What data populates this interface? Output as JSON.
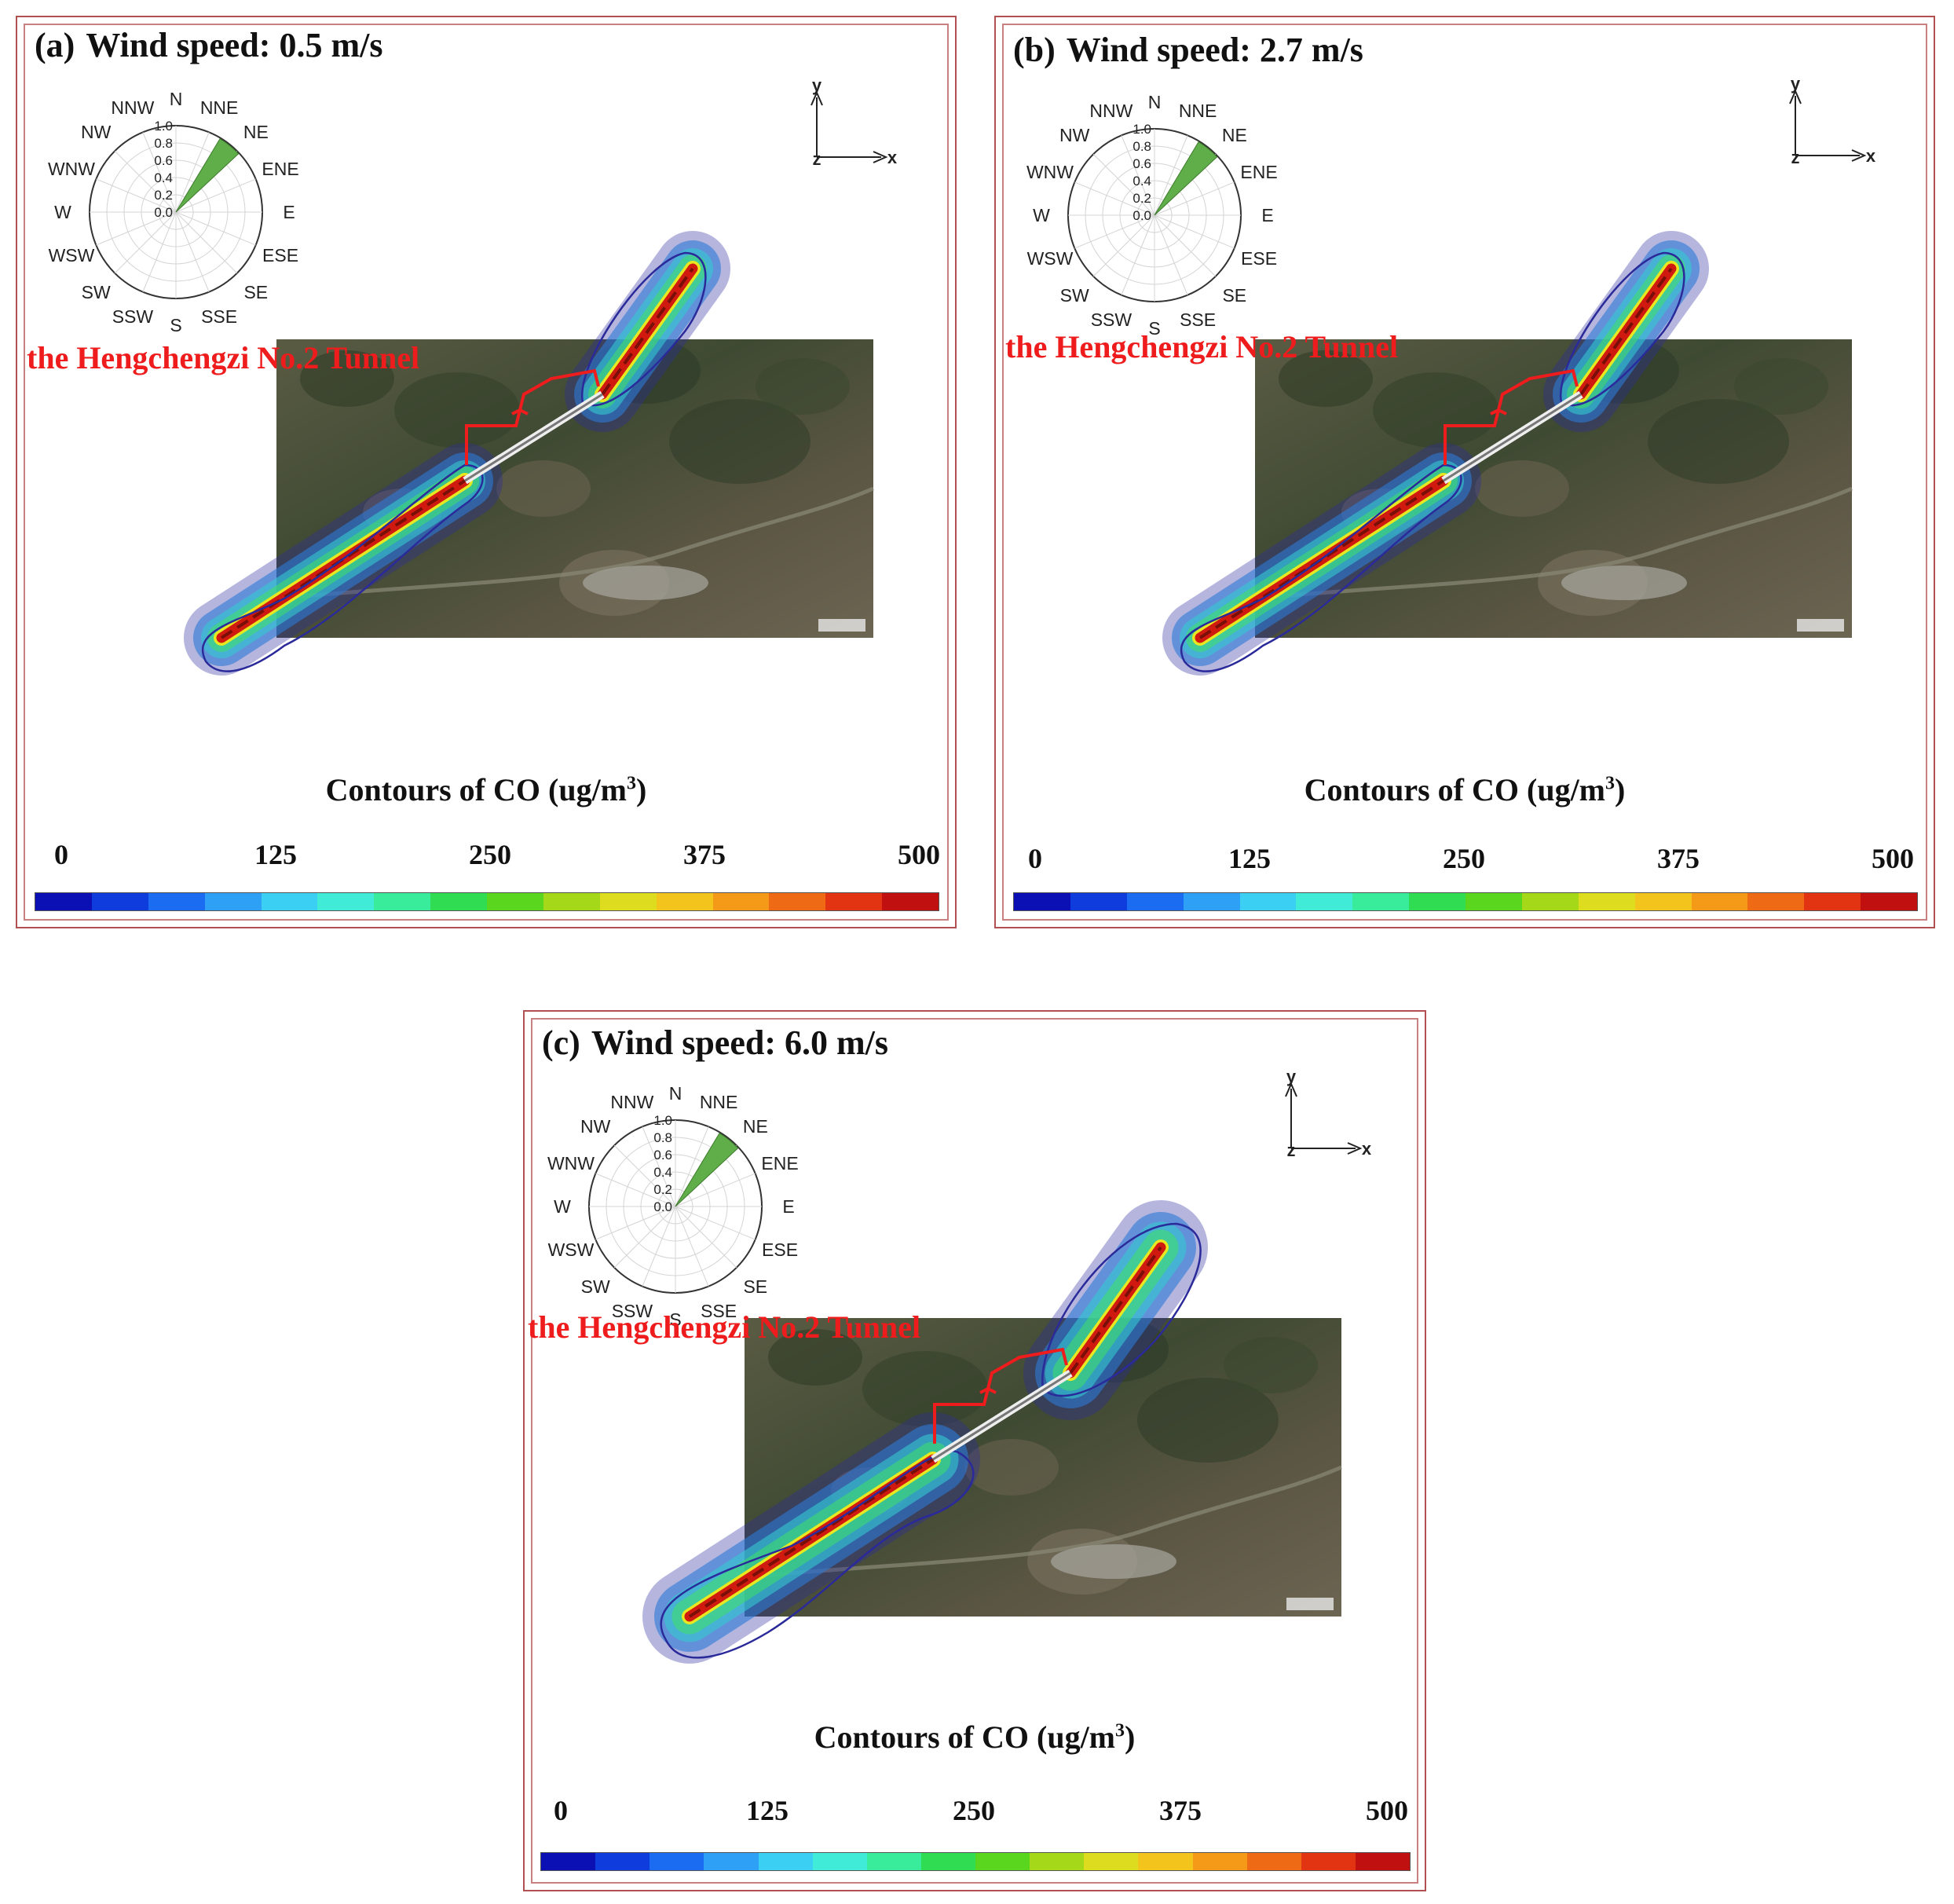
{
  "panels": [
    {
      "id": "a",
      "label": "(a)",
      "title": "Wind speed: 0.5 m/s"
    },
    {
      "id": "b",
      "label": "(b)",
      "title": "Wind speed: 2.7 m/s"
    },
    {
      "id": "c",
      "label": "(c)",
      "title": "Wind speed: 6.0 m/s"
    }
  ],
  "tunnel_label": "the Hengchengzi No.2 Tunnel",
  "colorbar": {
    "title_prefix": "Contours of CO (ug/m",
    "title_sup": "3",
    "title_suffix": ")",
    "ticks": [
      "0",
      "125",
      "250",
      "375",
      "500"
    ],
    "colors": [
      "#0a10b4",
      "#0f3cdc",
      "#1c6cf2",
      "#2ea0f6",
      "#3ccff4",
      "#40ecd8",
      "#38ec9c",
      "#30dc52",
      "#5ad61e",
      "#a6d81a",
      "#dedc1e",
      "#f2c41c",
      "#f49a18",
      "#ee6a14",
      "#e23412",
      "#c01010"
    ]
  },
  "wind_rose": {
    "directions": [
      "N",
      "NNE",
      "NE",
      "ENE",
      "E",
      "ESE",
      "SE",
      "SSE",
      "S",
      "SSW",
      "SW",
      "WSW",
      "W",
      "WNW",
      "NW",
      "NNW"
    ],
    "radial_ticks": [
      "0.0",
      "0.2",
      "0.4",
      "0.6",
      "0.8",
      "1.0"
    ],
    "sector_color": "#5fae4a"
  },
  "axes": {
    "x": "x",
    "y": "y",
    "z": "z"
  },
  "colors": {
    "tunnel": "#ee1c1c",
    "frame": "#b05050"
  }
}
